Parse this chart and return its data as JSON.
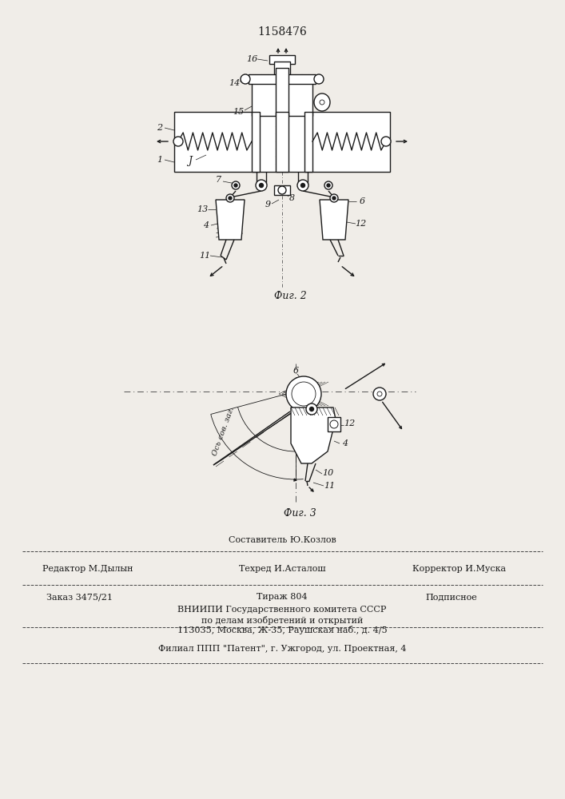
{
  "patent_number": "1158476",
  "footer_sostavitel": "Составитель Ю.Козлов",
  "footer_editor": "Редактор М.Дылын",
  "footer_techred": "Техред И.Асталош",
  "footer_corrector": "Корректор И.Муска",
  "footer_order": "Заказ 3475/21",
  "footer_tirazh": "Тираж 804",
  "footer_podpisnoe": "Подписное",
  "footer_vnipi": "ВНИИПИ Государственного комитета СССР",
  "footer_po_delam": "по делам изобретений и открытий",
  "footer_address": "113035, Москва, Ж-35, Раушская наб., д. 4/5",
  "footer_filial": "Филиал ППП \"Патент\", г. Ужгород, ул. Проектная, 4",
  "fig2_label": "Фиг. 2",
  "fig3_label": "Фиг. 3",
  "oss_label": "Ось сов. заг."
}
